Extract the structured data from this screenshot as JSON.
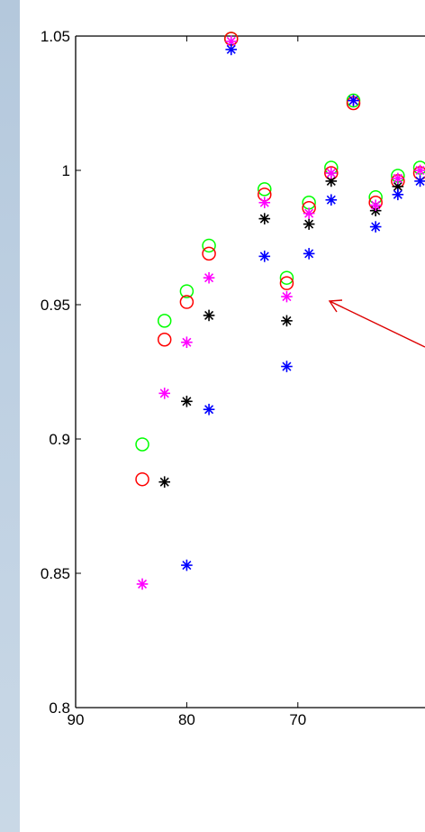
{
  "colors": {
    "green": "#00ff00",
    "red": "#ff0000",
    "black": "#000000",
    "magenta": "#ff00ff",
    "blue": "#0000ff",
    "arrow": "#dd0000"
  },
  "chart_data": {
    "type": "scatter",
    "title": "",
    "xlabel": "",
    "ylabel": "",
    "x_reversed": true,
    "xlim": [
      90,
      60
    ],
    "ylim": [
      0.8,
      1.05
    ],
    "xticks": [
      "90",
      "80",
      "70"
    ],
    "yticks": [
      "0.8",
      "0.85",
      "0.9",
      "0.95",
      "1",
      "1.05"
    ],
    "grid": false,
    "legend": "none",
    "annotation": "red arrow pointing to the data points near x = 70, y = 0.953",
    "series": [
      {
        "marker": "circle",
        "color": "green",
        "points": [
          [
            84,
            0.898
          ],
          [
            82,
            0.944
          ],
          [
            80,
            0.955
          ],
          [
            78,
            0.972
          ],
          [
            76,
            1.049
          ],
          [
            73,
            0.993
          ],
          [
            71,
            0.96
          ],
          [
            69,
            0.988
          ],
          [
            67,
            1.001
          ],
          [
            65,
            1.026
          ],
          [
            63,
            0.99
          ],
          [
            61,
            0.998
          ],
          [
            59,
            1.001
          ]
        ]
      },
      {
        "marker": "circle",
        "color": "red",
        "points": [
          [
            84,
            0.885
          ],
          [
            82,
            0.937
          ],
          [
            80,
            0.951
          ],
          [
            78,
            0.969
          ],
          [
            76,
            1.049
          ],
          [
            73,
            0.991
          ],
          [
            71,
            0.958
          ],
          [
            69,
            0.986
          ],
          [
            67,
            0.999
          ],
          [
            65,
            1.025
          ],
          [
            63,
            0.988
          ],
          [
            61,
            0.996
          ],
          [
            59,
            0.999
          ]
        ]
      },
      {
        "marker": "asterisk",
        "color": "black",
        "points": [
          [
            82,
            0.884
          ],
          [
            80,
            0.914
          ],
          [
            78,
            0.946
          ],
          [
            73,
            0.982
          ],
          [
            71,
            0.944
          ],
          [
            69,
            0.98
          ],
          [
            67,
            0.996
          ],
          [
            63,
            0.985
          ],
          [
            61,
            0.994
          ]
        ]
      },
      {
        "marker": "asterisk",
        "color": "magenta",
        "points": [
          [
            84,
            0.846
          ],
          [
            82,
            0.917
          ],
          [
            80,
            0.936
          ],
          [
            78,
            0.96
          ],
          [
            76,
            1.048
          ],
          [
            73,
            0.988
          ],
          [
            71,
            0.953
          ],
          [
            69,
            0.984
          ],
          [
            67,
            0.999
          ],
          [
            65,
            1.026
          ],
          [
            63,
            0.987
          ],
          [
            61,
            0.997
          ],
          [
            59,
            1.0
          ]
        ]
      },
      {
        "marker": "asterisk",
        "color": "blue",
        "points": [
          [
            80,
            0.853
          ],
          [
            78,
            0.911
          ],
          [
            76,
            1.045
          ],
          [
            73,
            0.968
          ],
          [
            71,
            0.927
          ],
          [
            69,
            0.969
          ],
          [
            67,
            0.989
          ],
          [
            65,
            1.026
          ],
          [
            63,
            0.979
          ],
          [
            61,
            0.991
          ],
          [
            59,
            0.996
          ]
        ]
      }
    ]
  }
}
